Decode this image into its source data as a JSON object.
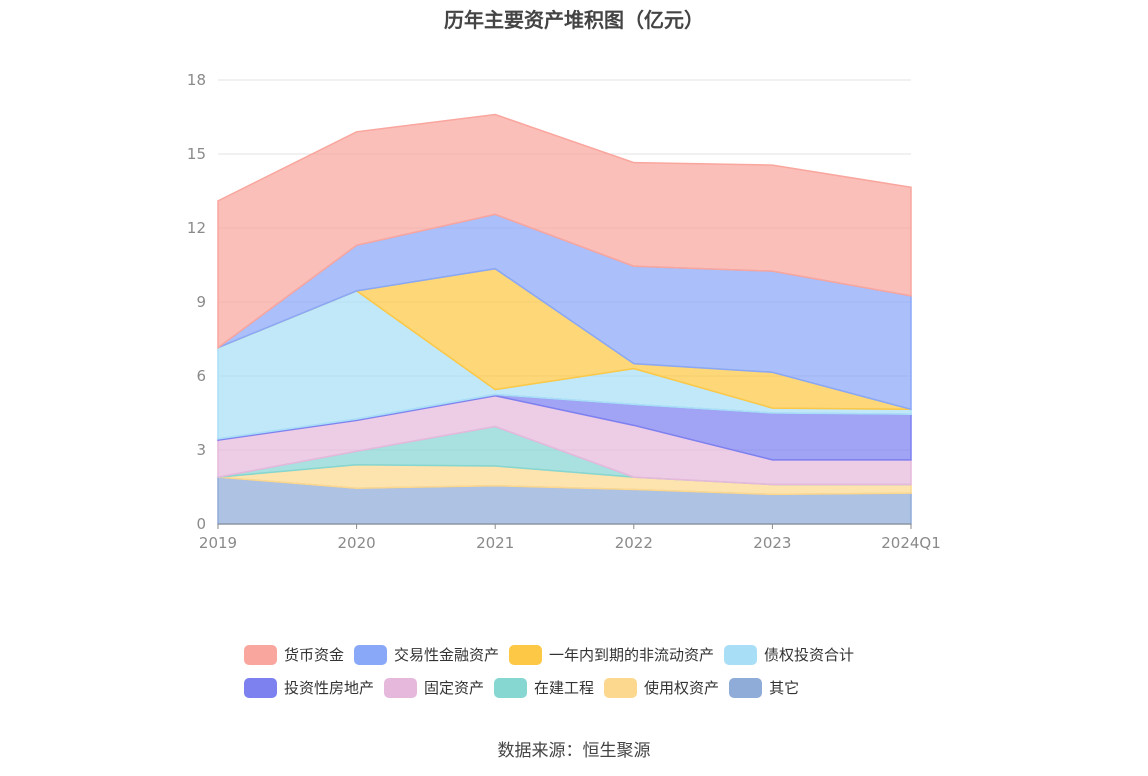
{
  "chart_data": {
    "type": "area",
    "stacked": true,
    "title": "历年主要资产堆积图（亿元）",
    "categories": [
      "2019",
      "2020",
      "2021",
      "2022",
      "2023",
      "2024Q1"
    ],
    "ylim": [
      0,
      18
    ],
    "yticks": [
      "0",
      "3",
      "6",
      "9",
      "12",
      "15",
      "18"
    ],
    "grid": true,
    "legend_position": "bottom",
    "series": [
      {
        "name": "其它",
        "color": "#8fabd8",
        "values": [
          1.9,
          1.45,
          1.55,
          1.4,
          1.2,
          1.25
        ]
      },
      {
        "name": "使用权资产",
        "color": "#fcd88f",
        "values": [
          0.0,
          0.95,
          0.8,
          0.5,
          0.4,
          0.35
        ]
      },
      {
        "name": "在建工程",
        "color": "#86d6d2",
        "values": [
          0.0,
          0.55,
          1.6,
          0.0,
          0.0,
          0.0
        ]
      },
      {
        "name": "固定资产",
        "color": "#e6b8dc",
        "values": [
          1.5,
          1.25,
          1.25,
          2.1,
          1.0,
          1.0
        ]
      },
      {
        "name": "投资性房地产",
        "color": "#7d81f0",
        "values": [
          0.05,
          0.05,
          0.05,
          0.85,
          1.9,
          1.85
        ]
      },
      {
        "name": "债权投资合计",
        "color": "#a8dff7",
        "values": [
          3.7,
          5.2,
          0.2,
          1.45,
          0.2,
          0.2
        ]
      },
      {
        "name": "一年内到期的非流动资产",
        "color": "#fdc845",
        "values": [
          0.0,
          0.0,
          4.9,
          0.2,
          1.45,
          0.0
        ]
      },
      {
        "name": "交易性金融资产",
        "color": "#8aa8f8",
        "values": [
          0.0,
          1.85,
          2.2,
          3.95,
          4.1,
          4.6
        ]
      },
      {
        "name": "货币资金",
        "color": "#f9a69e",
        "values": [
          5.95,
          4.6,
          4.05,
          4.2,
          4.3,
          4.4
        ]
      }
    ]
  },
  "legend": {
    "rows": [
      [
        {
          "label": "货币资金",
          "color": "#f9a69e"
        },
        {
          "label": "交易性金融资产",
          "color": "#8aa8f8"
        },
        {
          "label": "一年内到期的非流动资产",
          "color": "#fdc845"
        },
        {
          "label": "债权投资合计",
          "color": "#a8dff7"
        }
      ],
      [
        {
          "label": "投资性房地产",
          "color": "#7d81f0"
        },
        {
          "label": "固定资产",
          "color": "#e6b8dc"
        },
        {
          "label": "在建工程",
          "color": "#86d6d2"
        },
        {
          "label": "使用权资产",
          "color": "#fcd88f"
        },
        {
          "label": "其它",
          "color": "#8fabd8"
        }
      ]
    ]
  },
  "source": "数据来源：恒生聚源"
}
